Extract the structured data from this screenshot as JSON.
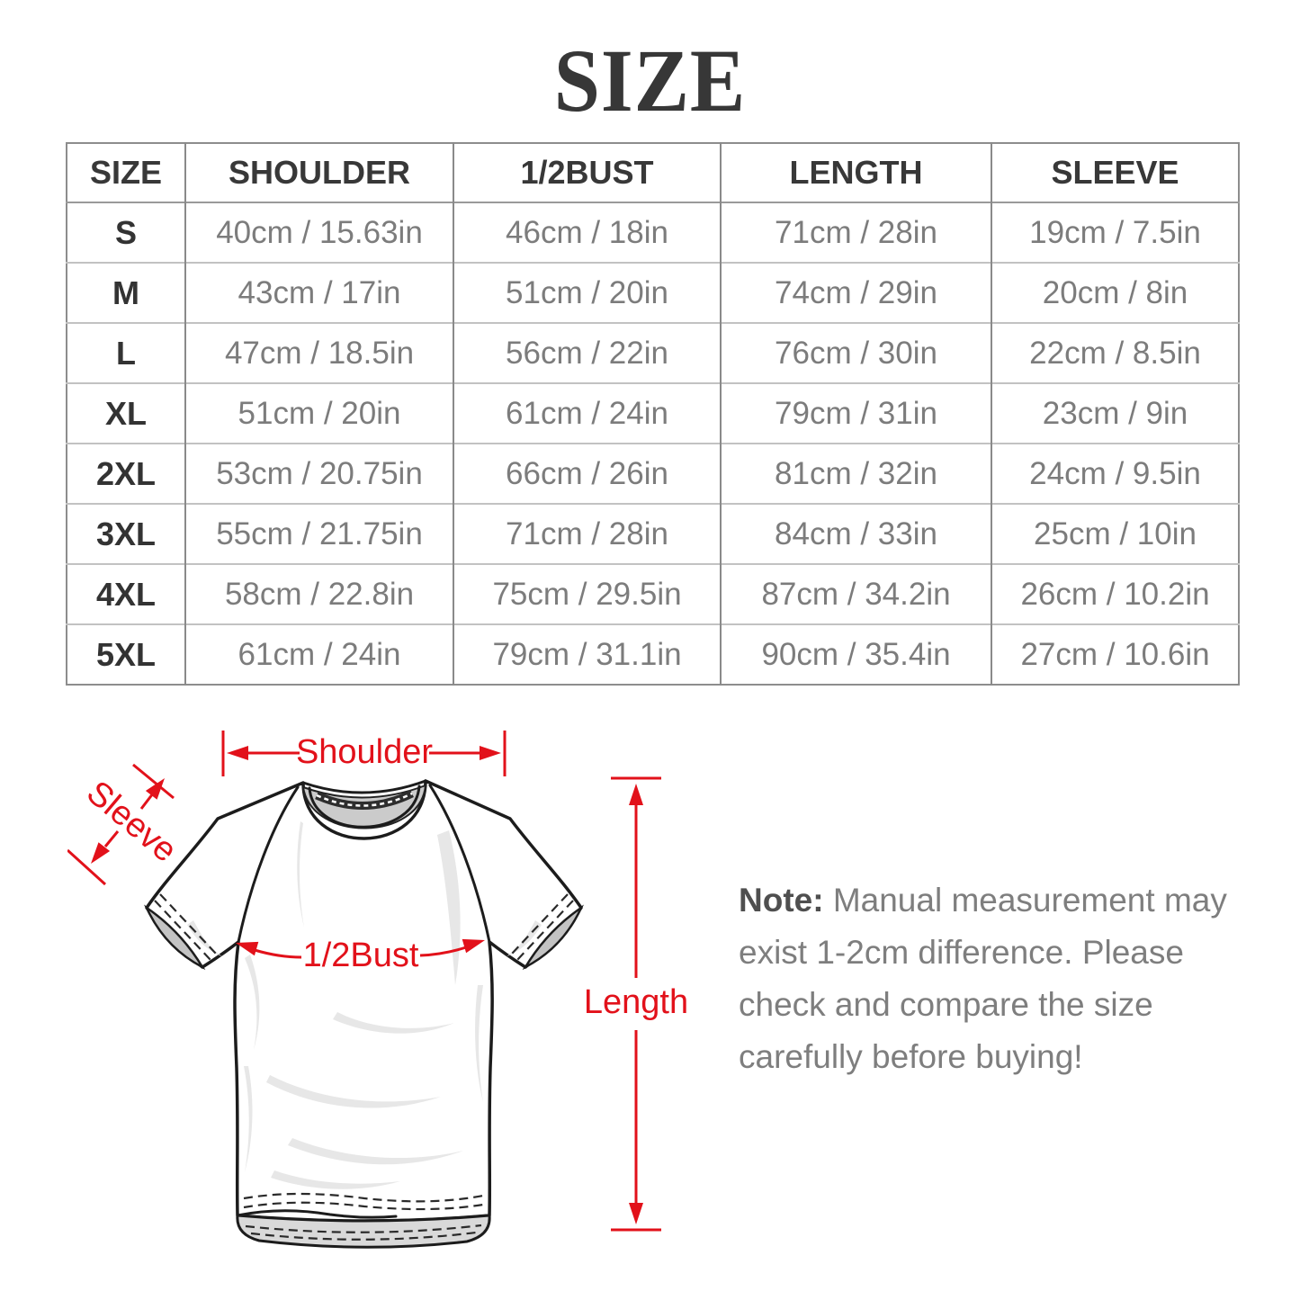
{
  "title": "SIZE",
  "table": {
    "headers": [
      "SIZE",
      "SHOULDER",
      "1/2BUST",
      "LENGTH",
      "SLEEVE"
    ],
    "column_keys": [
      "size",
      "shoulder",
      "bust",
      "length",
      "sleeve"
    ],
    "rows": [
      {
        "size": "S",
        "shoulder": "40cm / 15.63in",
        "bust": "46cm / 18in",
        "length": "71cm / 28in",
        "sleeve": "19cm / 7.5in"
      },
      {
        "size": "M",
        "shoulder": "43cm / 17in",
        "bust": "51cm / 20in",
        "length": "74cm / 29in",
        "sleeve": "20cm / 8in"
      },
      {
        "size": "L",
        "shoulder": "47cm / 18.5in",
        "bust": "56cm / 22in",
        "length": "76cm / 30in",
        "sleeve": "22cm / 8.5in"
      },
      {
        "size": "XL",
        "shoulder": "51cm / 20in",
        "bust": "61cm / 24in",
        "length": "79cm / 31in",
        "sleeve": "23cm / 9in"
      },
      {
        "size": "2XL",
        "shoulder": "53cm / 20.75in",
        "bust": "66cm / 26in",
        "length": "81cm / 32in",
        "sleeve": "24cm / 9.5in"
      },
      {
        "size": "3XL",
        "shoulder": "55cm / 21.75in",
        "bust": "71cm / 28in",
        "length": "84cm / 33in",
        "sleeve": "25cm / 10in"
      },
      {
        "size": "4XL",
        "shoulder": "58cm / 22.8in",
        "bust": "75cm / 29.5in",
        "length": "87cm / 34.2in",
        "sleeve": "26cm / 10.2in"
      },
      {
        "size": "5XL",
        "shoulder": "61cm / 24in",
        "bust": "79cm / 31.1in",
        "length": "90cm / 35.4in",
        "sleeve": "27cm / 10.6in"
      }
    ]
  },
  "diagram": {
    "labels": {
      "shoulder": "Shoulder",
      "sleeve": "Sleeve",
      "bust": "1/2Bust",
      "length": "Length"
    },
    "accent_color": "#e2111a"
  },
  "note": {
    "prefix": "Note:",
    "lines": [
      " Manual measurement may",
      "exist 1-2cm difference. Please",
      "check and compare the size",
      "carefully before buying!"
    ]
  }
}
